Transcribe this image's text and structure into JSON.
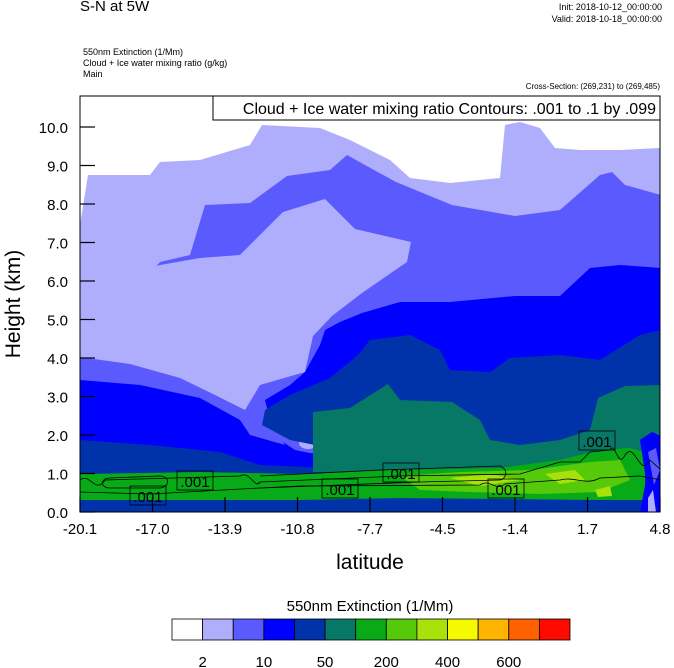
{
  "header": {
    "title": "S-N at 5W",
    "init": "Init: 2018-10-12_00:00:00",
    "valid": "Valid: 2018-10-18_00:00:00",
    "field1": "550nm Extinction   (1/Mm)",
    "field2": "Cloud + Ice water mixing ratio   (g/kg)",
    "field3": "Main",
    "cross_section": "Cross-Section: (269,231) to (269,485)"
  },
  "chart_data": {
    "type": "heatmap",
    "subtype": "filled contour cross-section with line contours",
    "title": "S-N at 5W",
    "xlabel": "latitude",
    "ylabel": "Height (km)",
    "xlim": [
      -20.1,
      4.8
    ],
    "ylim": [
      0,
      10.8
    ],
    "x_ticks": [
      "-20.1",
      "-17.0",
      "-13.9",
      "-10.8",
      "-7.7",
      "-4.5",
      "-1.4",
      "1.7",
      "4.8"
    ],
    "y_ticks": [
      "0.0",
      "1.0",
      "2.0",
      "3.0",
      "4.0",
      "5.0",
      "6.0",
      "7.0",
      "8.0",
      "9.0",
      "10.0"
    ],
    "contour_legend": "Cloud + Ice water mixing ratio Contours: .001 to .1 by .099",
    "contour_labels": [
      ".001",
      ".001",
      ".001",
      ".001",
      ".001",
      ".001"
    ],
    "colorbar": {
      "title": "550nm Extinction  (1/Mm)",
      "colors": [
        "#ffffff",
        "#aeaefc",
        "#5a5aff",
        "#0000ff",
        "#0033aa",
        "#077766",
        "#08aa18",
        "#55c90a",
        "#a8e20a",
        "#f5fa00",
        "#ffb400",
        "#ff6000",
        "#ff0a00"
      ],
      "labels": [
        "2",
        "10",
        "50",
        "200",
        "400",
        "600"
      ]
    }
  }
}
